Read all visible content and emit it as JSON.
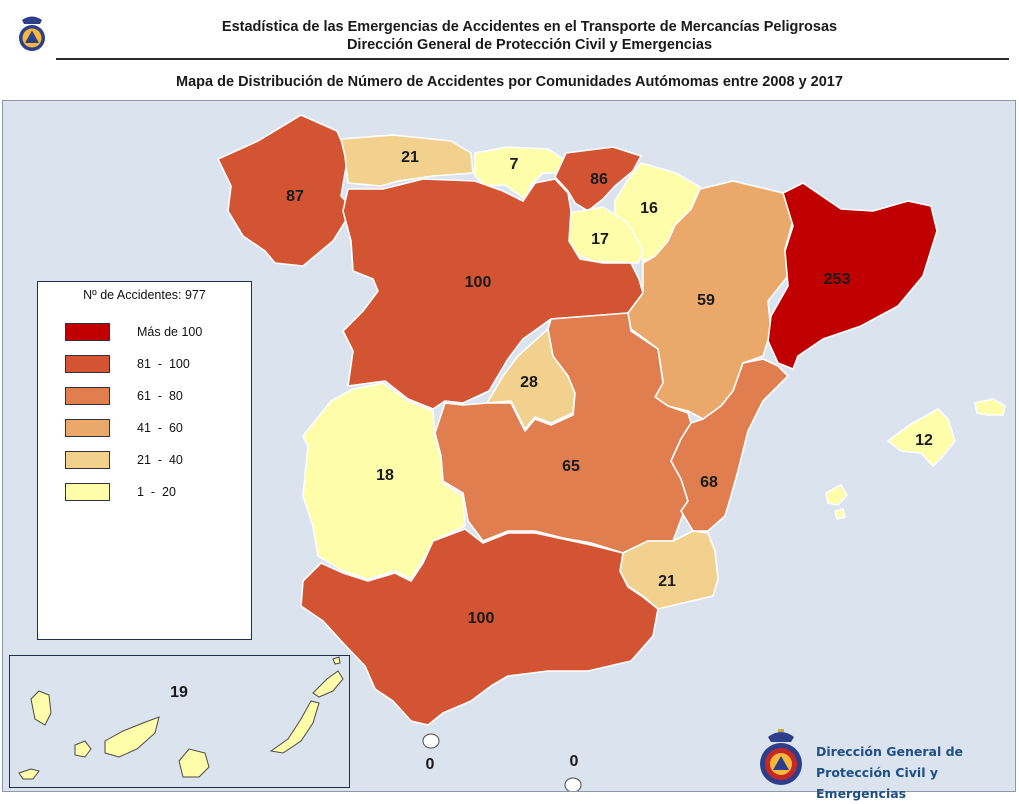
{
  "header": {
    "title_line1": "Estadística de las Emergencias de Accidentes en el Transporte de Mercancías Peligrosas",
    "title_line2": "Dirección General de Protección Civil y Emergencias"
  },
  "subtitle": "Mapa de Distribución de Número de Accidentes por Comunidades Autómomas entre 2008 y 2017",
  "legend": {
    "title": "Nº de Accidentes: 977",
    "items": [
      {
        "label": "Más de 100",
        "color": "#c00000"
      },
      {
        "label": "81  -  100",
        "color": "#d35433"
      },
      {
        "label": "61  -  80",
        "color": "#e07e4f"
      },
      {
        "label": "41  -  60",
        "color": "#eaa86a"
      },
      {
        "label": "21  -  40",
        "color": "#f2d08e"
      },
      {
        "label": "1  -  20",
        "color": "#fdfdaa"
      }
    ]
  },
  "regions": {
    "galicia": {
      "value": "87",
      "color": "#d35433"
    },
    "asturias": {
      "value": "21",
      "color": "#f2d08e"
    },
    "cantabria": {
      "value": "7",
      "color": "#fdfdaa"
    },
    "pais_vasco": {
      "value": "86",
      "color": "#d35433"
    },
    "navarra": {
      "value": "16",
      "color": "#fdfdaa"
    },
    "la_rioja": {
      "value": "17",
      "color": "#fdfdaa"
    },
    "castilla_leon": {
      "value": "100",
      "color": "#d35433"
    },
    "aragon": {
      "value": "59",
      "color": "#eaa86a"
    },
    "cataluna": {
      "value": "253",
      "color": "#c00000"
    },
    "madrid": {
      "value": "28",
      "color": "#f2d08e"
    },
    "castilla_la_mancha": {
      "value": "65",
      "color": "#e07e4f"
    },
    "extremadura": {
      "value": "18",
      "color": "#fdfdaa"
    },
    "valencia": {
      "value": "68",
      "color": "#e07e4f"
    },
    "murcia": {
      "value": "21",
      "color": "#f2d08e"
    },
    "andalucia": {
      "value": "100",
      "color": "#d35433"
    },
    "baleares": {
      "value": "12",
      "color": "#fdfdaa"
    },
    "canarias": {
      "value": "19",
      "color": "#fdfdaa"
    },
    "ceuta": {
      "value": "0",
      "color": "#ffffff"
    },
    "melilla": {
      "value": "0",
      "color": "#ffffff"
    }
  },
  "footer": {
    "org_line1": "Dirección General de",
    "org_line2": "Protección Civil y Emergencias"
  },
  "icons": [
    "proteccion-civil-emblem",
    "proteccion-civil-seal"
  ],
  "colors": {
    "sea": "#dae3ee",
    "frame_border": "#1f2f50",
    "org_text": "#1e4f86"
  }
}
